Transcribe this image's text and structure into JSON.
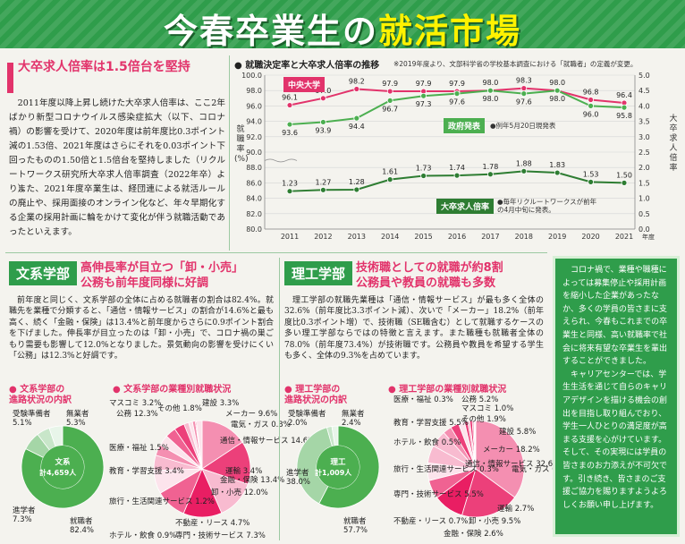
{
  "title": {
    "part1": "今春卒業生の",
    "part2": "就活市場"
  },
  "section1": {
    "heading": "大卒求人倍率は1.5倍台を堅持",
    "paragraphs": [
      "2011年度以降上昇し続けた大卒求人倍率は、ここ2年ばかり新型コロナウイルス感染症拡大（以下、コロナ禍）の影響を受けて、2020年度は前年度比0.3ポイント減の1.53倍、2021年度はさらにそれを0.03ポイント下回ったものの1.50倍と1.5倍台を堅持しました（リクルートワークス研究所大卒求人倍率調査（2022年卒）より）。",
      "また、2021年度卒業生は、経団連による就活ルールの廃止や、採用面接のオンライン化など、年々早期化する企業の採用計画に輪をかけて変化が伴う就職活動であったといえます。"
    ]
  },
  "chart": {
    "title": "就職決定率と大卒求人倍率の推移",
    "note": "※2019年度より、文部科学省の学校基本調査における「就職者」の定義が変更。",
    "label_chuo": "中央大学",
    "label_gov": "政府発表",
    "label_gov_note": "●例年5月20日現発表",
    "label_ratio": "大卒求人倍率",
    "label_ratio_note": "●毎年リクルートワークスが前年の4月中旬に発表。",
    "y_left_label": "就職率(%)",
    "y_right_label": "大卒求人倍率",
    "x_suffix": "年度"
  },
  "chart_data": {
    "type": "line",
    "x": [
      "2011",
      "2012",
      "2013",
      "2014",
      "2015",
      "2016",
      "2017",
      "2018",
      "2019",
      "2020",
      "2021"
    ],
    "y_left_ticks": [
      "80.0",
      "82.0",
      "84.0",
      "86.0",
      "88.0",
      "90.0",
      "92.0",
      "94.0",
      "96.0",
      "98.0",
      "100.0"
    ],
    "y_right_ticks": [
      "0.0",
      "0.5",
      "1.0",
      "1.5",
      "2.0",
      "2.5",
      "3.0",
      "3.5",
      "4.0",
      "4.5",
      "5.0"
    ],
    "series": [
      {
        "name": "中央大学",
        "axis": "left",
        "color": "#e2336b",
        "values": [
          96.1,
          97.0,
          98.2,
          97.9,
          97.9,
          97.9,
          98.0,
          98.3,
          98.0,
          96.8,
          96.4
        ]
      },
      {
        "name": "政府発表",
        "axis": "left",
        "color": "#4caf50",
        "values": [
          93.6,
          93.9,
          94.4,
          96.7,
          97.3,
          97.6,
          98.0,
          97.6,
          98.0,
          96.0,
          95.8
        ]
      },
      {
        "name": "大卒求人倍率",
        "axis": "right",
        "color": "#2e7d32",
        "values": [
          1.23,
          1.27,
          1.28,
          1.61,
          1.73,
          1.74,
          1.78,
          1.88,
          1.83,
          1.53,
          1.5
        ]
      }
    ]
  },
  "bunkei": {
    "head": "文系学部",
    "sub1": "高伸長率が目立つ「卸・小売」",
    "sub2": "公務も前年度同様に好調",
    "text": "前年度と同じく、文系学部の全体に占める就職者の割合は82.4%。就職先を業種で分類すると、「通信・情報サービス」の割合が14.6%と最も高く、続く「金融・保険」は13.4%と前年度からさらに0.9ポイント割合を下げました。伸長率が目立ったのは「卸・小売」で、コロナ禍の巣ごもり需要も影響して12.0%となりました。景気動向の影響を受けにくい「公務」は12.3%と好調です。",
    "pie1_head1": "文系学部の",
    "pie1_head2": "進路状況の内訳",
    "pie1_center1": "文系",
    "pie1_center2": "計4,659人",
    "pie1": [
      {
        "label": "就職者",
        "value": "82.4%",
        "color": "#4caf50"
      },
      {
        "label": "進学者",
        "value": "7.3%",
        "color": "#a5d6a7"
      },
      {
        "label": "受験準備者",
        "value": "5.1%",
        "color": "#c8e6c9"
      },
      {
        "label": "無業者",
        "value": "5.3%",
        "color": "#e8f5e9"
      }
    ],
    "pie2_head": "文系学部の業種別就職状況",
    "pie2": [
      {
        "label": "通信・情報サービス",
        "value": "14.6%",
        "color": "#f48fb1"
      },
      {
        "label": "金融・保険",
        "value": "13.4%",
        "color": "#ec407a"
      },
      {
        "label": "公務",
        "value": "12.3%",
        "color": "#f8bbd0"
      },
      {
        "label": "卸・小売",
        "value": "12.0%",
        "color": "#e91e63"
      },
      {
        "label": "メーカー",
        "value": "9.6%",
        "color": "#f06292"
      },
      {
        "label": "専門・技術サービス",
        "value": "7.3%",
        "color": "#fce4ec"
      },
      {
        "label": "不動産・リース",
        "value": "4.7%",
        "color": "#f8bbd0"
      },
      {
        "label": "運輸",
        "value": "3.4%",
        "color": "#f48fb1"
      },
      {
        "label": "教育・学習支援",
        "value": "3.4%",
        "color": "#fce4ec"
      },
      {
        "label": "建設",
        "value": "3.3%",
        "color": "#f06292"
      },
      {
        "label": "マスコミ",
        "value": "3.2%",
        "color": "#ec407a"
      },
      {
        "label": "医療・福祉",
        "value": "1.5%",
        "color": "#f8bbd0"
      },
      {
        "label": "旅行・生活関連サービス",
        "value": "1.2%",
        "color": "#fce4ec"
      },
      {
        "label": "ホテル・飲食",
        "value": "0.9%",
        "color": "#f48fb1"
      },
      {
        "label": "電気・ガス",
        "value": "0.3%",
        "color": "#e91e63"
      },
      {
        "label": "その他",
        "value": "1.8%",
        "color": "#fce4ec"
      }
    ]
  },
  "riko": {
    "head": "理工学部",
    "sub1": "技術職としての就職が約8割",
    "sub2": "公務員や教員の就職も多数",
    "text": "理工学部の就職先業種は「通信・情報サービス」が最も多く全体の32.6%（前年度比3.3ポイント減）、次いで「メーカー」18.2%（前年度比0.3ポイント増）で、技術職（SE職含む）として就職するケースの多い理工学部ならではの特徴と言えます。また職種も就職者全体の78.0%（前年度73.4%）が技術職です。公務員や教員を希望する学生も多く、全体の9.3%を占めています。",
    "pie1_head1": "理工学部の",
    "pie1_head2": "進路状況の内訳",
    "pie1_center1": "理工",
    "pie1_center2": "計1,009人",
    "pie1": [
      {
        "label": "就職者",
        "value": "57.7%",
        "color": "#4caf50"
      },
      {
        "label": "進学者",
        "value": "38.0%",
        "color": "#a5d6a7"
      },
      {
        "label": "受験準備者",
        "value": "2.0%",
        "color": "#c8e6c9"
      },
      {
        "label": "無業者",
        "value": "2.4%",
        "color": "#e8f5e9"
      }
    ],
    "pie2_head": "理工学部の業種別就職状況",
    "pie2": [
      {
        "label": "通信・情報サービス",
        "value": "32.6%",
        "color": "#f48fb1"
      },
      {
        "label": "メーカー",
        "value": "18.2%",
        "color": "#ec407a"
      },
      {
        "label": "卸・小売",
        "value": "9.5%",
        "color": "#e91e63"
      },
      {
        "label": "建設",
        "value": "5.8%",
        "color": "#f06292"
      },
      {
        "label": "専門・技術サービス",
        "value": "5.5%",
        "color": "#fce4ec"
      },
      {
        "label": "教育・学習支援",
        "value": "5.5%",
        "color": "#f8bbd0"
      },
      {
        "label": "公務",
        "value": "5.2%",
        "color": "#f8bbd0"
      },
      {
        "label": "運輸",
        "value": "2.7%",
        "color": "#f48fb1"
      },
      {
        "label": "金融・保険",
        "value": "2.6%",
        "color": "#ec407a"
      },
      {
        "label": "その他",
        "value": "1.9%",
        "color": "#fce4ec"
      },
      {
        "label": "マスコミ",
        "value": "1.0%",
        "color": "#ec407a"
      },
      {
        "label": "不動産・リース",
        "value": "0.7%",
        "color": "#f8bbd0"
      },
      {
        "label": "電気・ガス",
        "value": "0.7%",
        "color": "#e91e63"
      },
      {
        "label": "ホテル・飲食",
        "value": "0.5%",
        "color": "#f48fb1"
      },
      {
        "label": "医療・福祉",
        "value": "0.3%",
        "color": "#f8bbd0"
      },
      {
        "label": "旅行・生活関連サービス",
        "value": "0.3%",
        "color": "#fce4ec"
      }
    ]
  },
  "sidebar": {
    "p1": "コロナ禍で、業種や職種によっては募集停止や採用計画を縮小した企業があったなか、多くの学員の皆さまに支えられ、今春もこれまでの卒業生と同様、高い就職率で社会に将来有望な卒業生を輩出することができました。",
    "p2": "キャリアセンターでは、学生生活を通じて自らのキャリアデザインを描ける機会の創出を目指し取り組んでおり、学生一人ひとりの満足度が高まる支援を心がけています。そして、その実現には学員の皆さまのお力添えが不可欠です。引き続き、皆さまのご支援ご協力を賜りますようよろしくお願い申し上げます。"
  }
}
